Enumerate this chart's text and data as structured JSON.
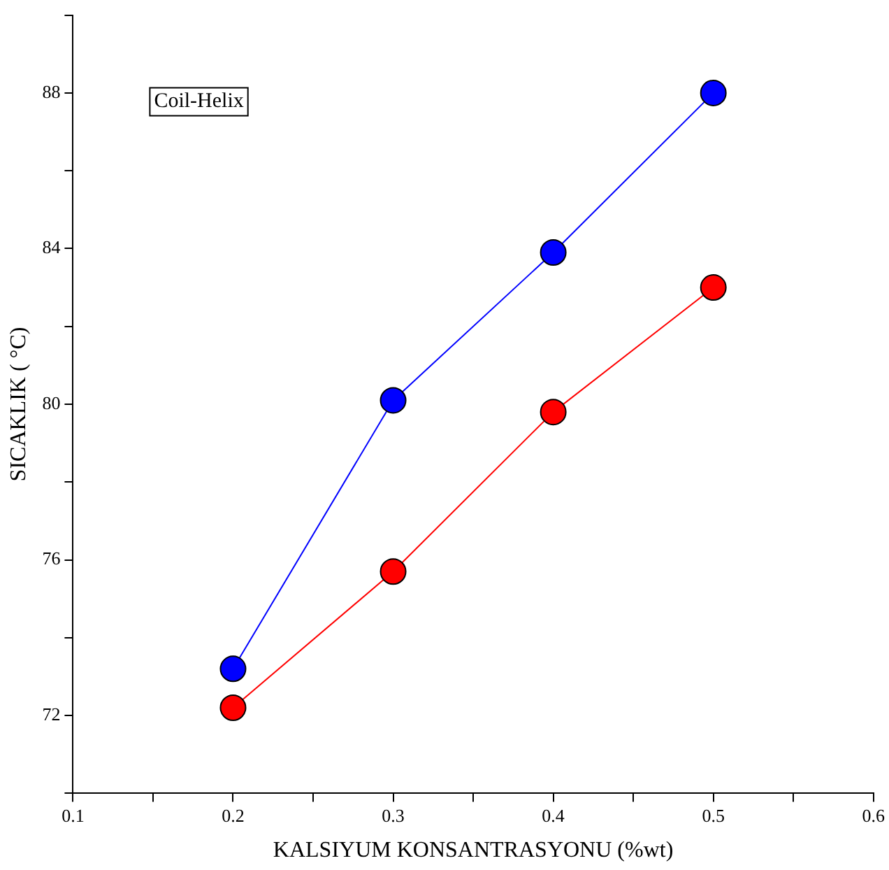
{
  "chart_data": {
    "type": "line",
    "xlabel": "KALSIYUM KONSANTRASYONU (%wt)",
    "ylabel": "SICAKLIK ( °C)",
    "annotations": [
      "Coil-Helix"
    ],
    "x": [
      0.2,
      0.3,
      0.4,
      0.5
    ],
    "series": [
      {
        "color": "#0000ff",
        "values": [
          73.2,
          80.1,
          83.9,
          88.0
        ]
      },
      {
        "color": "#ff0000",
        "values": [
          72.2,
          75.7,
          79.8,
          83.0
        ]
      }
    ],
    "xlim": [
      0.1,
      0.6
    ],
    "xticks": [
      0.1,
      {
        "value": 0.15,
        "label": null
      },
      0.2,
      {
        "value": 0.25,
        "label": null
      },
      0.3,
      {
        "value": 0.35,
        "label": null
      },
      0.4,
      {
        "value": 0.45,
        "label": null
      },
      0.5,
      {
        "value": 0.55,
        "label": null
      },
      0.6
    ],
    "ylim": [
      70,
      90
    ],
    "yticks": [
      {
        "value": 70,
        "label": null
      },
      72,
      {
        "value": 74,
        "label": null
      },
      76,
      {
        "value": 78,
        "label": null
      },
      80,
      {
        "value": 82,
        "label": null
      },
      84,
      {
        "value": 86,
        "label": null
      },
      88,
      {
        "value": 90,
        "label": null
      }
    ],
    "grid": false,
    "legend": false,
    "marker": "circle",
    "line_style": "solid"
  }
}
